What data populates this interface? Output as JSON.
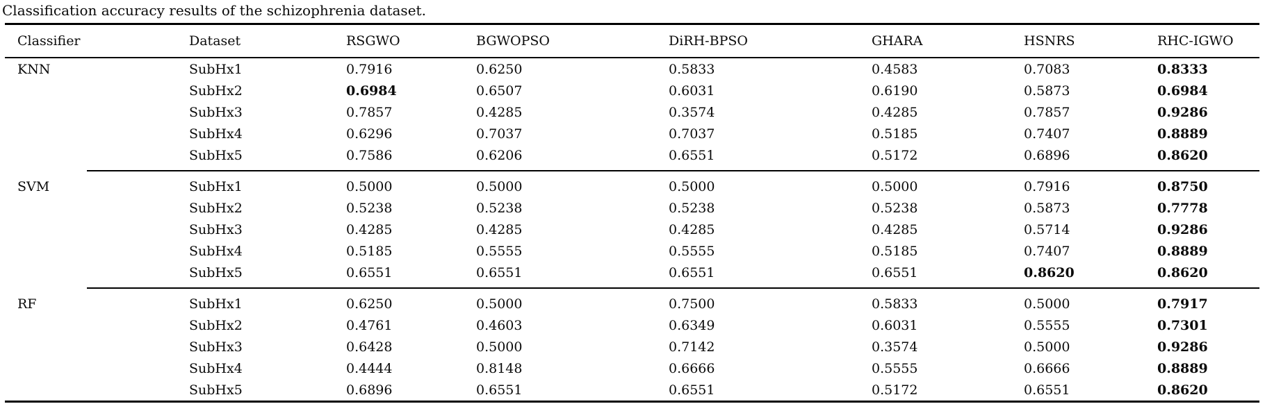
{
  "title": "Classification accuracy results of the schizophrenia dataset.",
  "table": {
    "columns": [
      "Classifier",
      "Dataset",
      "RSGWO",
      "BGWOPSO",
      "DiRH-BPSO",
      "GHARA",
      "HSNRS",
      "RHC-IGWO"
    ],
    "groups": [
      {
        "classifier": "KNN",
        "rows": [
          {
            "dataset": "SubHx1",
            "values": [
              "0.7916",
              "0.6250",
              "0.5833",
              "0.4583",
              "0.7083",
              "0.8333"
            ],
            "bold": [
              5
            ]
          },
          {
            "dataset": "SubHx2",
            "values": [
              "0.6984",
              "0.6507",
              "0.6031",
              "0.6190",
              "0.5873",
              "0.6984"
            ],
            "bold": [
              0,
              5
            ]
          },
          {
            "dataset": "SubHx3",
            "values": [
              "0.7857",
              "0.4285",
              "0.3574",
              "0.4285",
              "0.7857",
              "0.9286"
            ],
            "bold": [
              5
            ]
          },
          {
            "dataset": "SubHx4",
            "values": [
              "0.6296",
              "0.7037",
              "0.7037",
              "0.5185",
              "0.7407",
              "0.8889"
            ],
            "bold": [
              5
            ]
          },
          {
            "dataset": "SubHx5",
            "values": [
              "0.7586",
              "0.6206",
              "0.6551",
              "0.5172",
              "0.6896",
              "0.8620"
            ],
            "bold": [
              5
            ]
          }
        ]
      },
      {
        "classifier": "SVM",
        "rows": [
          {
            "dataset": "SubHx1",
            "values": [
              "0.5000",
              "0.5000",
              "0.5000",
              "0.5000",
              "0.7916",
              "0.8750"
            ],
            "bold": [
              5
            ]
          },
          {
            "dataset": "SubHx2",
            "values": [
              "0.5238",
              "0.5238",
              "0.5238",
              "0.5238",
              "0.5873",
              "0.7778"
            ],
            "bold": [
              5
            ]
          },
          {
            "dataset": "SubHx3",
            "values": [
              "0.4285",
              "0.4285",
              "0.4285",
              "0.4285",
              "0.5714",
              "0.9286"
            ],
            "bold": [
              5
            ]
          },
          {
            "dataset": "SubHx4",
            "values": [
              "0.5185",
              "0.5555",
              "0.5555",
              "0.5185",
              "0.7407",
              "0.8889"
            ],
            "bold": [
              5
            ]
          },
          {
            "dataset": "SubHx5",
            "values": [
              "0.6551",
              "0.6551",
              "0.6551",
              "0.6551",
              "0.8620",
              "0.8620"
            ],
            "bold": [
              4,
              5
            ]
          }
        ]
      },
      {
        "classifier": "RF",
        "rows": [
          {
            "dataset": "SubHx1",
            "values": [
              "0.6250",
              "0.5000",
              "0.7500",
              "0.5833",
              "0.5000",
              "0.7917"
            ],
            "bold": [
              5
            ]
          },
          {
            "dataset": "SubHx2",
            "values": [
              "0.4761",
              "0.4603",
              "0.6349",
              "0.6031",
              "0.5555",
              "0.7301"
            ],
            "bold": [
              5
            ]
          },
          {
            "dataset": "SubHx3",
            "values": [
              "0.6428",
              "0.5000",
              "0.7142",
              "0.3574",
              "0.5000",
              "0.9286"
            ],
            "bold": [
              5
            ]
          },
          {
            "dataset": "SubHx4",
            "values": [
              "0.4444",
              "0.8148",
              "0.6666",
              "0.5555",
              "0.6666",
              "0.8889"
            ],
            "bold": [
              5
            ]
          },
          {
            "dataset": "SubHx5",
            "values": [
              "0.6896",
              "0.6551",
              "0.6551",
              "0.5172",
              "0.6551",
              "0.8620"
            ],
            "bold": [
              5
            ]
          }
        ]
      }
    ]
  }
}
